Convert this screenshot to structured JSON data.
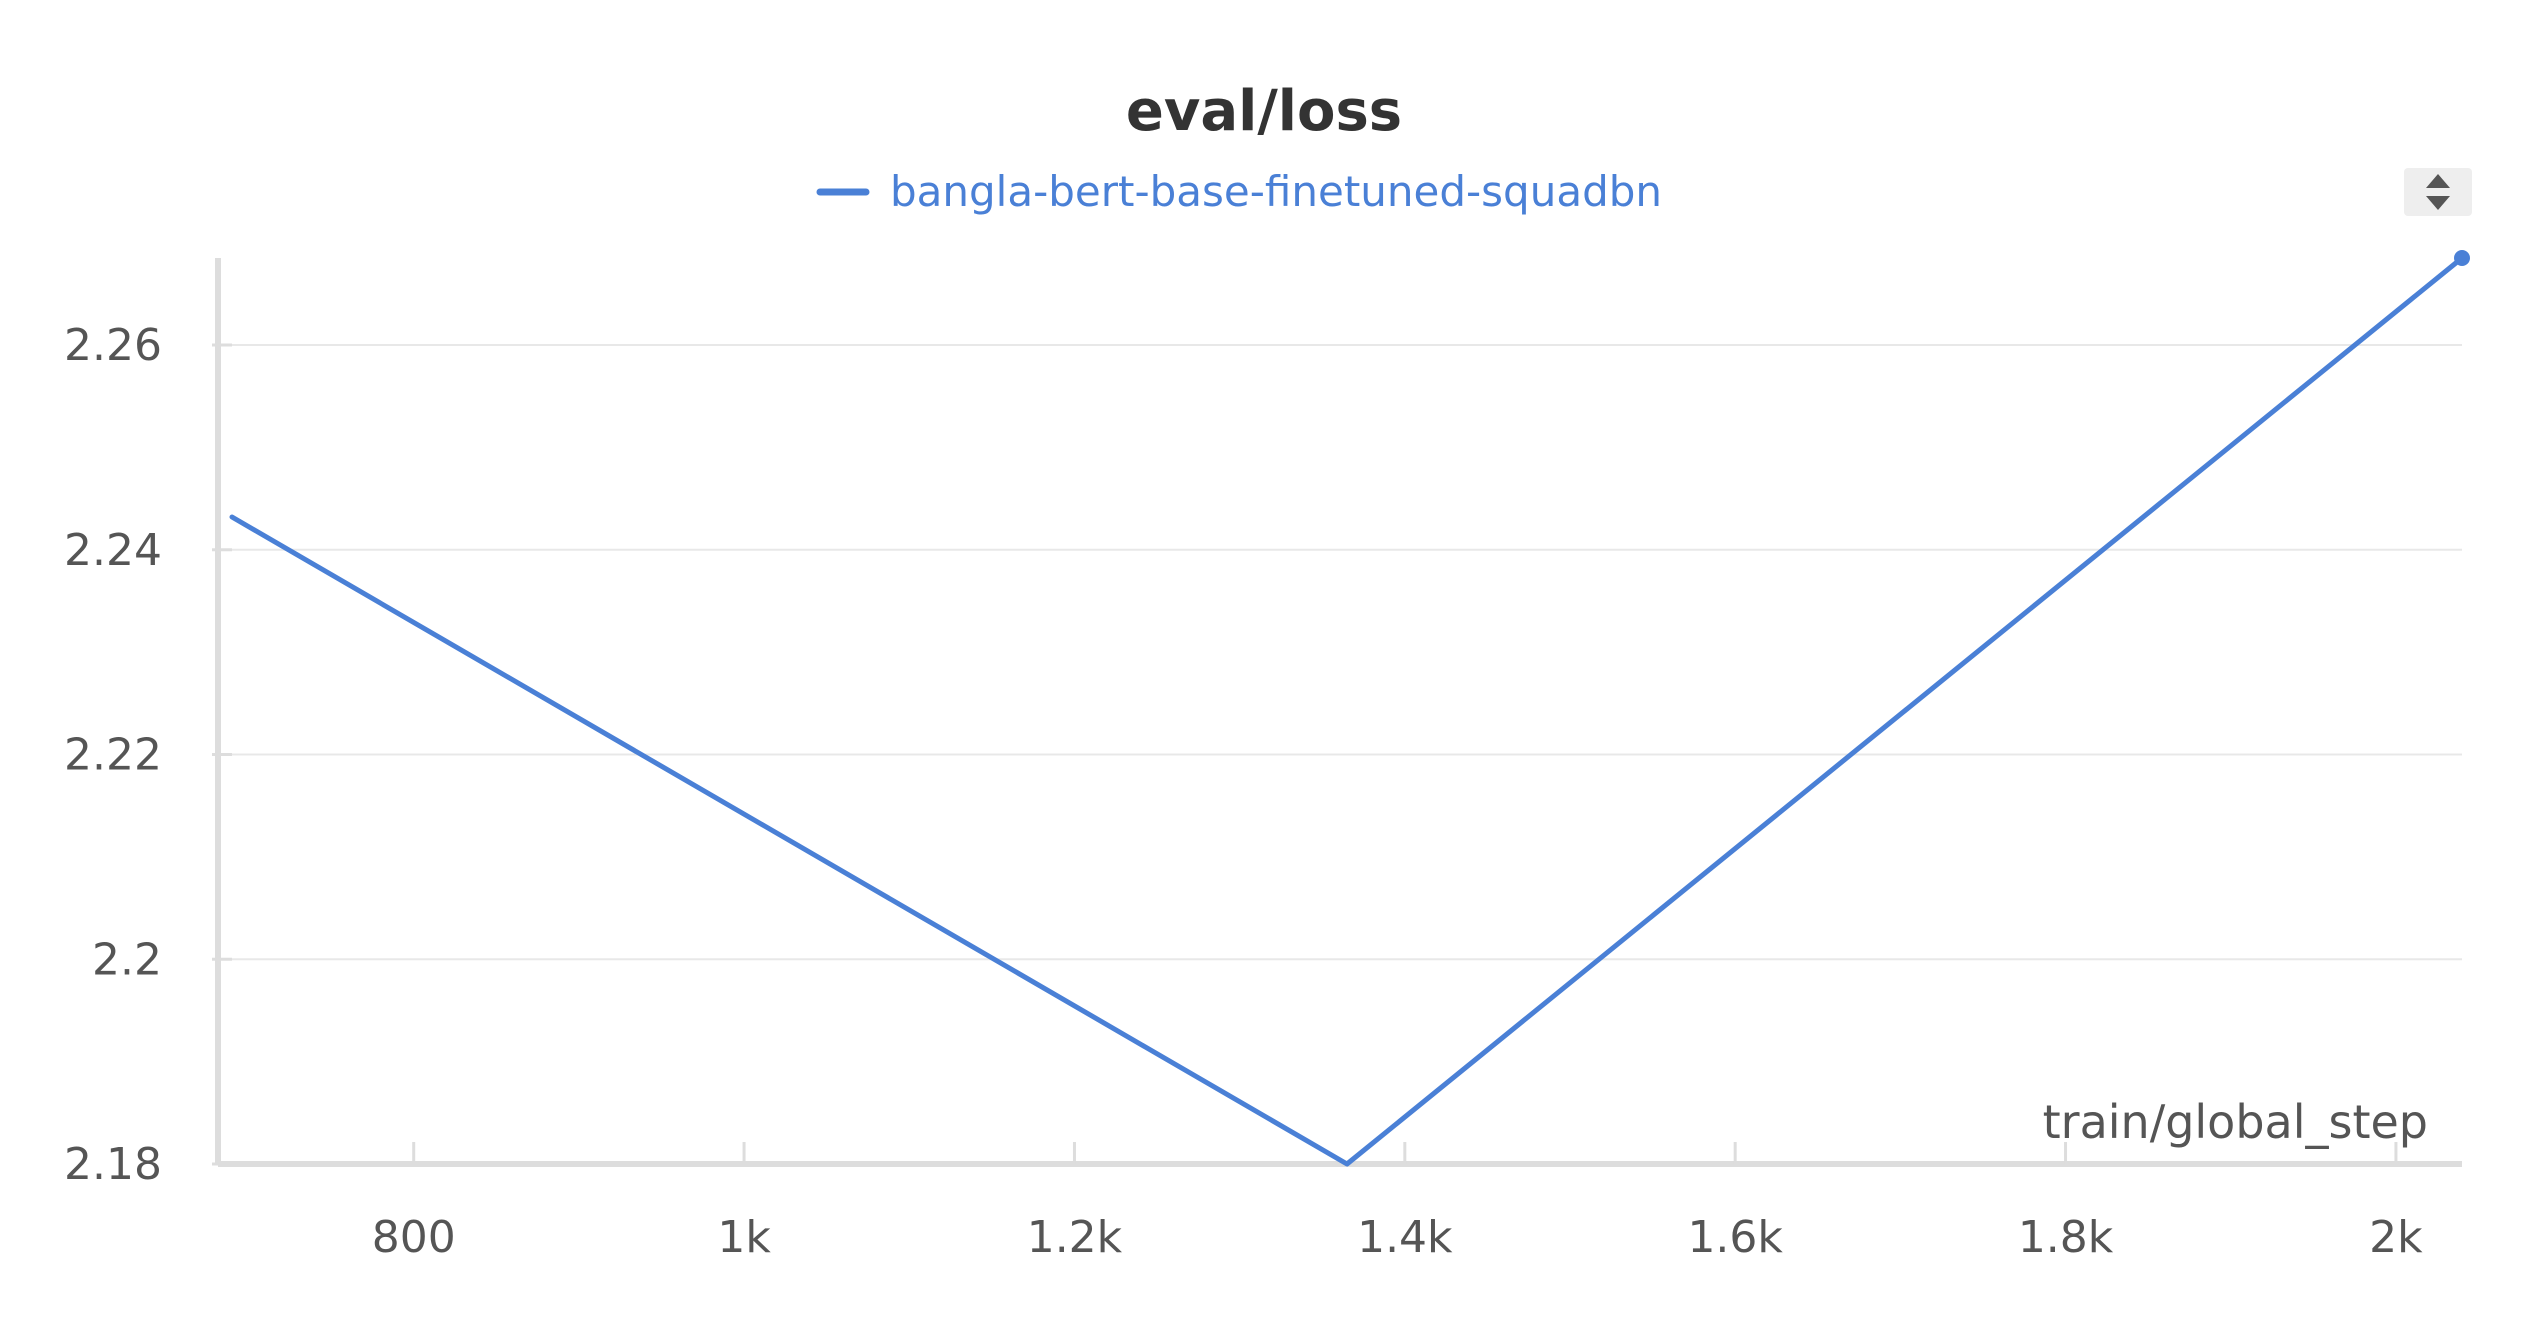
{
  "chart_data": {
    "type": "line",
    "title": "eval/loss",
    "xlabel": "train/global_step",
    "ylabel": "",
    "xlim": [
      690,
      2040
    ],
    "ylim": [
      2.18,
      2.2685
    ],
    "x_ticks": [
      {
        "value": 800,
        "label": "800"
      },
      {
        "value": 1000,
        "label": "1k"
      },
      {
        "value": 1200,
        "label": "1.2k"
      },
      {
        "value": 1400,
        "label": "1.4k"
      },
      {
        "value": 1600,
        "label": "1.6k"
      },
      {
        "value": 1800,
        "label": "1.8k"
      },
      {
        "value": 2000,
        "label": "2k"
      }
    ],
    "y_ticks": [
      {
        "value": 2.18,
        "label": "2.18"
      },
      {
        "value": 2.2,
        "label": "2.2"
      },
      {
        "value": 2.22,
        "label": "2.22"
      },
      {
        "value": 2.24,
        "label": "2.24"
      },
      {
        "value": 2.26,
        "label": "2.26"
      }
    ],
    "grid": true,
    "legend_position": "top-center",
    "series": [
      {
        "name": "bangla-bert-base-finetuned-squadbn",
        "color": "#4a80d6",
        "x": [
          690,
          1365,
          2040
        ],
        "y": [
          2.2432,
          2.18,
          2.2685
        ]
      }
    ]
  },
  "colors": {
    "grid": "#e8e8e8",
    "axis": "#dddddd",
    "tick_text": "#555555",
    "title": "#333333",
    "scroll_button": "#eeeeee"
  },
  "icons": {
    "legend_scroll": "up-down-arrows-icon"
  }
}
